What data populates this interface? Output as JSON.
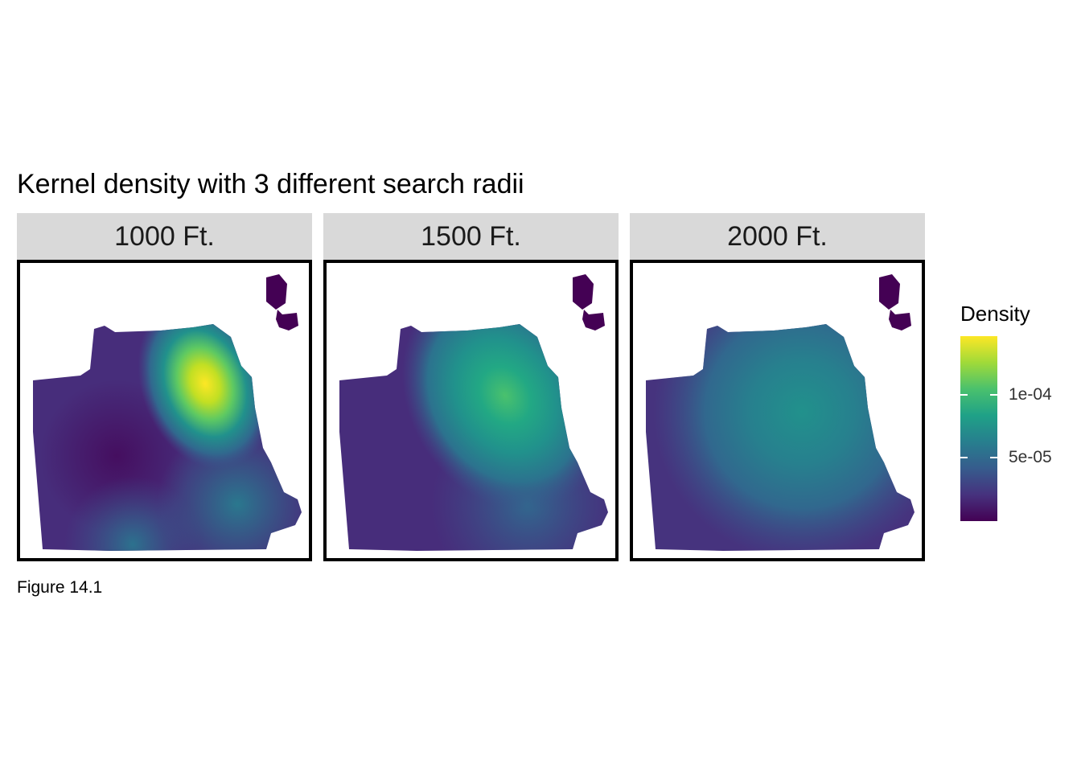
{
  "title": "Kernel density with 3 different search radii",
  "caption": "Figure 14.1",
  "panels": [
    {
      "label": "1000 Ft.",
      "search_radius_ft": 1000,
      "peak_density": 0.00015
    },
    {
      "label": "1500 Ft.",
      "search_radius_ft": 1500,
      "peak_density": 0.000105
    },
    {
      "label": "2000 Ft.",
      "search_radius_ft": 2000,
      "peak_density": 8.5e-05
    }
  ],
  "legend": {
    "title": "Density",
    "min": 5e-06,
    "max": 0.00015,
    "ticks": [
      {
        "label": "1e-04",
        "value": 0.0001
      },
      {
        "label": "5e-05",
        "value": 5e-05
      }
    ]
  },
  "colors": {
    "low": "#440154",
    "mid": "#21918c",
    "high": "#fde725",
    "frame": "#000000",
    "strip": "#d9d9d9"
  }
}
